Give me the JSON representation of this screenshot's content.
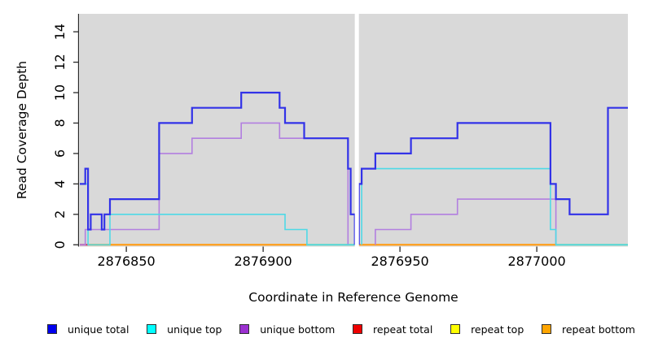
{
  "chart_data": {
    "type": "line",
    "subtype": "step",
    "title": "",
    "xlabel": "Coordinate in Reference Genome",
    "ylabel": "Read Coverage Depth",
    "xlim": [
      2876833,
      2877033.3
    ],
    "ylim": [
      -0.12,
      15.18
    ],
    "xticks": [
      2876850,
      2876900,
      2876950,
      2877000
    ],
    "yticks": [
      0,
      2,
      4,
      6,
      8,
      10,
      12,
      14
    ],
    "panel_bg": "#d9d9d9",
    "grid": "off",
    "legend_position": "bottom",
    "gap": {
      "from": 2876933.5,
      "to": 2876935,
      "color": "#ffffff"
    },
    "baseline_segments": [
      {
        "from": 2876833,
        "to": 2876836,
        "color": "#d04060"
      },
      {
        "from": 2876836,
        "to": 2876916,
        "color": "#ff9e1b"
      },
      {
        "from": 2876916,
        "to": 2876933.5,
        "color": "#95ce92"
      },
      {
        "from": 2876935,
        "to": 2877007,
        "color": "#ff9e1b"
      },
      {
        "from": 2877007,
        "to": 2877033.3,
        "color": "#95ce92"
      }
    ],
    "series": [
      {
        "name": "unique bottom",
        "color": "#b27fe0",
        "width": 1.6,
        "segments": [
          [
            [
              2876833,
              0
            ],
            [
              2876835,
              0
            ],
            [
              2876835,
              1
            ],
            [
              2876862,
              1
            ],
            [
              2876862,
              6
            ],
            [
              2876874,
              6
            ],
            [
              2876874,
              7
            ],
            [
              2876892,
              7
            ],
            [
              2876892,
              8
            ],
            [
              2876906,
              8
            ],
            [
              2876906,
              7
            ],
            [
              2876931,
              7
            ],
            [
              2876931,
              0
            ]
          ],
          [
            [
              2876941,
              0
            ],
            [
              2876941,
              1
            ],
            [
              2876954,
              1
            ],
            [
              2876954,
              2
            ],
            [
              2876971,
              2
            ],
            [
              2876971,
              3
            ],
            [
              2877007,
              3
            ],
            [
              2877007,
              0
            ]
          ]
        ]
      },
      {
        "name": "unique top",
        "color": "#4ed9e6",
        "width": 1.6,
        "segments": [
          [
            [
              2876833,
              4
            ],
            [
              2876836,
              4
            ],
            [
              2876836,
              0
            ],
            [
              2876844,
              0
            ],
            [
              2876844,
              2
            ],
            [
              2876908,
              2
            ],
            [
              2876908,
              1
            ],
            [
              2876916,
              1
            ],
            [
              2876916,
              0
            ],
            [
              2876933.5,
              0
            ]
          ],
          [
            [
              2876936,
              0
            ],
            [
              2876936,
              5
            ],
            [
              2877005,
              5
            ],
            [
              2877005,
              1
            ],
            [
              2877007,
              1
            ],
            [
              2877007,
              0
            ],
            [
              2877033.3,
              0
            ]
          ]
        ]
      },
      {
        "name": "unique total",
        "color": "#3232e8",
        "width": 2.2,
        "segments": [
          [
            [
              2876833,
              4
            ],
            [
              2876835,
              4
            ],
            [
              2876835,
              5
            ],
            [
              2876836,
              5
            ],
            [
              2876836,
              1
            ],
            [
              2876837,
              1
            ],
            [
              2876837,
              2
            ],
            [
              2876841,
              2
            ],
            [
              2876841,
              1
            ],
            [
              2876842,
              1
            ],
            [
              2876842,
              2
            ],
            [
              2876844,
              2
            ],
            [
              2876844,
              3
            ],
            [
              2876862,
              3
            ],
            [
              2876862,
              8
            ],
            [
              2876874,
              8
            ],
            [
              2876874,
              9
            ],
            [
              2876892,
              9
            ],
            [
              2876892,
              10
            ],
            [
              2876906,
              10
            ],
            [
              2876906,
              9
            ],
            [
              2876908,
              9
            ],
            [
              2876908,
              8
            ],
            [
              2876915,
              8
            ],
            [
              2876915,
              7
            ],
            [
              2876931,
              7
            ],
            [
              2876931,
              5
            ],
            [
              2876932,
              5
            ],
            [
              2876932,
              2
            ],
            [
              2876933.5,
              2
            ],
            [
              2876933.5,
              0
            ]
          ],
          [
            [
              2876935,
              0
            ],
            [
              2876935,
              4
            ],
            [
              2876936,
              4
            ],
            [
              2876936,
              5
            ],
            [
              2876941,
              5
            ],
            [
              2876941,
              6
            ],
            [
              2876954,
              6
            ],
            [
              2876954,
              7
            ],
            [
              2876971,
              7
            ],
            [
              2876971,
              8
            ],
            [
              2877005,
              8
            ],
            [
              2877005,
              4
            ],
            [
              2877007,
              4
            ],
            [
              2877007,
              3
            ],
            [
              2877012,
              3
            ],
            [
              2877012,
              2
            ],
            [
              2877026,
              2
            ],
            [
              2877026,
              9
            ],
            [
              2877033.3,
              9
            ]
          ]
        ]
      }
    ],
    "legend": [
      {
        "label": "unique total",
        "color": "#0000ee"
      },
      {
        "label": "unique top",
        "color": "#00ffff"
      },
      {
        "label": "unique bottom",
        "color": "#9b30d0"
      },
      {
        "label": "repeat total",
        "color": "#ee0000"
      },
      {
        "label": "repeat top",
        "color": "#ffff00"
      },
      {
        "label": "repeat bottom",
        "color": "#ffa500"
      }
    ]
  }
}
